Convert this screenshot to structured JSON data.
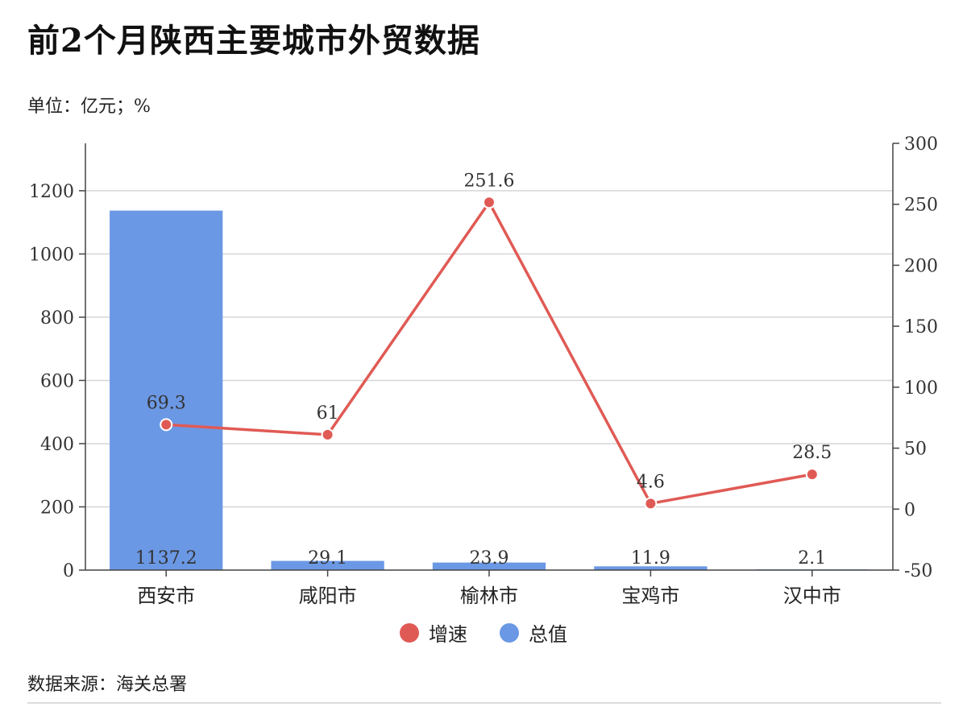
{
  "title": "前2个月陕西主要城市外贸数据",
  "unit": "单位：亿元；%",
  "source": "数据来源：海关总署",
  "colors": {
    "bar": "#6b98e4",
    "line": "#e05a55",
    "grid": "#d6d6d6",
    "axis": "#444444"
  },
  "chart_data": {
    "type": "bar",
    "categories": [
      "西安市",
      "咸阳市",
      "榆林市",
      "宝鸡市",
      "汉中市"
    ],
    "series": [
      {
        "name": "总值",
        "type": "bar",
        "axis": "left",
        "values": [
          1137.2,
          29.1,
          23.9,
          11.9,
          2.1
        ]
      },
      {
        "name": "增速",
        "type": "line",
        "axis": "right",
        "values": [
          69.3,
          61,
          251.6,
          4.6,
          28.5
        ]
      }
    ],
    "y_left": {
      "ylim": [
        0,
        1350
      ],
      "ticks": [
        0,
        200,
        400,
        600,
        800,
        1000,
        1200
      ]
    },
    "y_right": {
      "ylim": [
        -50,
        300
      ],
      "ticks": [
        -50,
        0,
        50,
        100,
        150,
        200,
        250,
        300
      ]
    },
    "grid": true,
    "legend": "bottom-center",
    "legend_items": [
      {
        "label": "增速",
        "color": "#e05a55"
      },
      {
        "label": "总值",
        "color": "#6b98e4"
      }
    ]
  }
}
